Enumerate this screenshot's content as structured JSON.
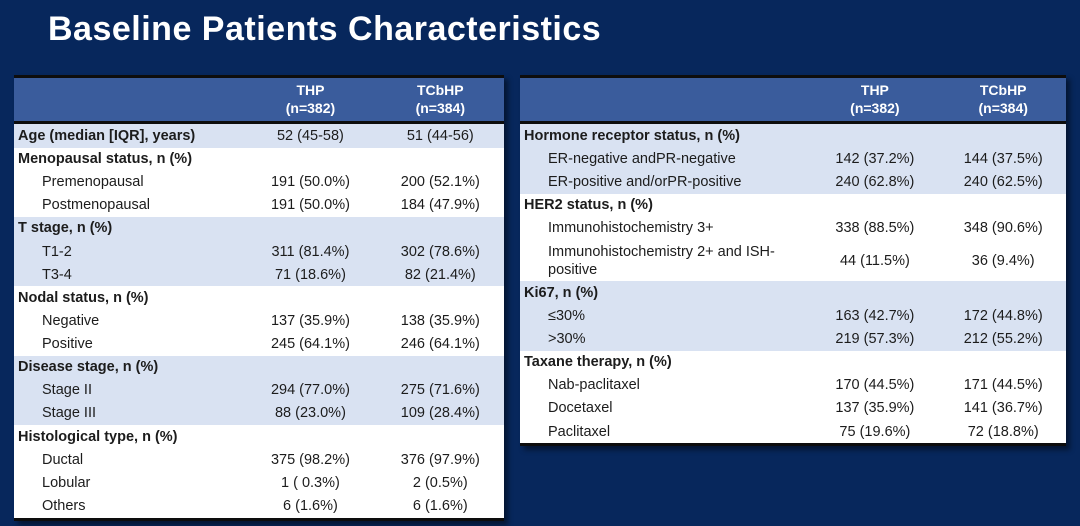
{
  "title": "Baseline Patients Characteristics",
  "colors": {
    "background": "#07275C",
    "table_header_blue": "#3A5C9C",
    "row_shade_blue": "#D9E2F2",
    "title_text": "#FFFFFF",
    "table_border": "#0d0d0d"
  },
  "tables": [
    {
      "name": "left-characteristics-table",
      "columns": [
        {
          "title": "THP",
          "subtitle": "(n=382)"
        },
        {
          "title": "TCbHP",
          "subtitle": "(n=384)"
        }
      ],
      "rows": [
        {
          "label": "Age (median [IQR], years)",
          "bold": true,
          "indent": false,
          "shade": true,
          "thp": "52 (45-58)",
          "tcbhp": "51 (44-56)"
        },
        {
          "label": "Menopausal status, n (%)",
          "bold": true,
          "indent": false,
          "shade": false,
          "thp": "",
          "tcbhp": ""
        },
        {
          "label": "Premenopausal",
          "bold": false,
          "indent": true,
          "shade": false,
          "thp": "191 (50.0%)",
          "tcbhp": "200 (52.1%)"
        },
        {
          "label": "Postmenopausal",
          "bold": false,
          "indent": true,
          "shade": false,
          "thp": "191 (50.0%)",
          "tcbhp": "184 (47.9%)"
        },
        {
          "label": "T stage, n (%)",
          "bold": true,
          "indent": false,
          "shade": true,
          "thp": "",
          "tcbhp": ""
        },
        {
          "label": "T1-2",
          "bold": false,
          "indent": true,
          "shade": true,
          "thp": "311 (81.4%)",
          "tcbhp": "302 (78.6%)"
        },
        {
          "label": "T3-4",
          "bold": false,
          "indent": true,
          "shade": true,
          "thp": "71 (18.6%)",
          "tcbhp": "82 (21.4%)"
        },
        {
          "label": "Nodal status, n (%)",
          "bold": true,
          "indent": false,
          "shade": false,
          "thp": "",
          "tcbhp": ""
        },
        {
          "label": "Negative",
          "bold": false,
          "indent": true,
          "shade": false,
          "thp": "137 (35.9%)",
          "tcbhp": "138 (35.9%)"
        },
        {
          "label": "Positive",
          "bold": false,
          "indent": true,
          "shade": false,
          "thp": "245 (64.1%)",
          "tcbhp": "246 (64.1%)"
        },
        {
          "label": "Disease stage, n (%)",
          "bold": true,
          "indent": false,
          "shade": true,
          "thp": "",
          "tcbhp": ""
        },
        {
          "label": "Stage II",
          "bold": false,
          "indent": true,
          "shade": true,
          "thp": "294 (77.0%)",
          "tcbhp": "275 (71.6%)"
        },
        {
          "label": "Stage III",
          "bold": false,
          "indent": true,
          "shade": true,
          "thp": "88 (23.0%)",
          "tcbhp": "109 (28.4%)"
        },
        {
          "label": "Histological type, n (%)",
          "bold": true,
          "indent": false,
          "shade": false,
          "thp": "",
          "tcbhp": ""
        },
        {
          "label": "Ductal",
          "bold": false,
          "indent": true,
          "shade": false,
          "thp": "375 (98.2%)",
          "tcbhp": "376 (97.9%)"
        },
        {
          "label": "Lobular",
          "bold": false,
          "indent": true,
          "shade": false,
          "thp": "1 ( 0.3%)",
          "tcbhp": "2 (0.5%)"
        },
        {
          "label": "Others",
          "bold": false,
          "indent": true,
          "shade": false,
          "thp": "6 (1.6%)",
          "tcbhp": "6 (1.6%)"
        }
      ]
    },
    {
      "name": "right-characteristics-table",
      "columns": [
        {
          "title": "THP",
          "subtitle": "(n=382)"
        },
        {
          "title": "TCbHP",
          "subtitle": "(n=384)"
        }
      ],
      "rows": [
        {
          "label": "Hormone receptor status, n (%)",
          "bold": true,
          "indent": false,
          "shade": true,
          "thp": "",
          "tcbhp": ""
        },
        {
          "label": "ER-negative andPR-negative",
          "bold": false,
          "indent": true,
          "shade": true,
          "thp": "142 (37.2%)",
          "tcbhp": "144 (37.5%)"
        },
        {
          "label": "ER-positive and/orPR-positive",
          "bold": false,
          "indent": true,
          "shade": true,
          "thp": "240 (62.8%)",
          "tcbhp": "240 (62.5%)"
        },
        {
          "label": "HER2 status, n (%)",
          "bold": true,
          "indent": false,
          "shade": false,
          "thp": "",
          "tcbhp": ""
        },
        {
          "label": "Immunohistochemistry 3+",
          "bold": false,
          "indent": true,
          "shade": false,
          "thp": "338 (88.5%)",
          "tcbhp": "348 (90.6%)"
        },
        {
          "label": "Immunohistochemistry 2+ and ISH-positive",
          "bold": false,
          "indent": true,
          "shade": false,
          "thp": "44 (11.5%)",
          "tcbhp": "36 (9.4%)"
        },
        {
          "label": "Ki67, n (%)",
          "bold": true,
          "indent": false,
          "shade": true,
          "thp": "",
          "tcbhp": ""
        },
        {
          "label": "≤30%",
          "bold": false,
          "indent": true,
          "shade": true,
          "thp": "163 (42.7%)",
          "tcbhp": "172 (44.8%)"
        },
        {
          "label": ">30%",
          "bold": false,
          "indent": true,
          "shade": true,
          "thp": "219 (57.3%)",
          "tcbhp": "212 (55.2%)"
        },
        {
          "label": "Taxane therapy, n (%)",
          "bold": true,
          "indent": false,
          "shade": false,
          "thp": "",
          "tcbhp": ""
        },
        {
          "label": "Nab-paclitaxel",
          "bold": false,
          "indent": true,
          "shade": false,
          "thp": "170 (44.5%)",
          "tcbhp": "171 (44.5%)"
        },
        {
          "label": "Docetaxel",
          "bold": false,
          "indent": true,
          "shade": false,
          "thp": "137 (35.9%)",
          "tcbhp": "141 (36.7%)"
        },
        {
          "label": "Paclitaxel",
          "bold": false,
          "indent": true,
          "shade": false,
          "thp": "75 (19.6%)",
          "tcbhp": "72 (18.8%)"
        }
      ]
    }
  ]
}
